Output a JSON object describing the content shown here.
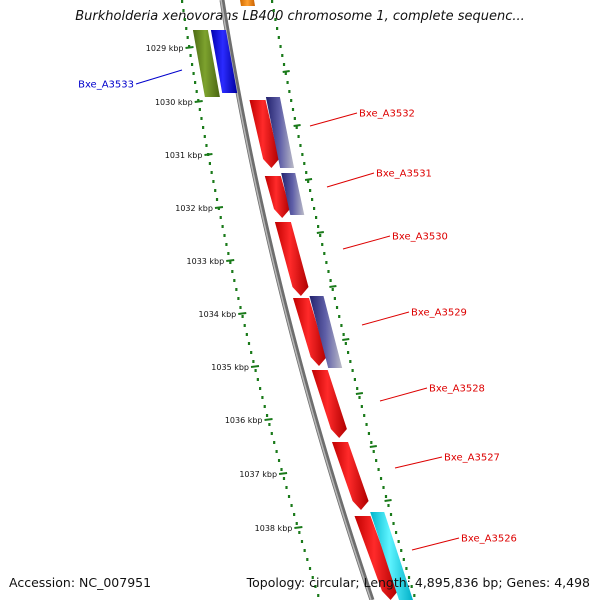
{
  "title": "Burkholderia xenovorans LB400 chromosome 1, complete sequenc...",
  "accession_text": "Accession: NC_007951",
  "summary_text": "Topology: circular; Length: 4,895,836 bp; Genes: 4,498",
  "kbp_labels": [
    "1029 kbp",
    "1030 kbp",
    "1031 kbp",
    "1032 kbp",
    "1033 kbp",
    "1034 kbp",
    "1035 kbp",
    "1036 kbp",
    "1037 kbp",
    "1038 kbp"
  ],
  "genes": [
    {
      "label": "Bxe_A3533",
      "strand": "left",
      "color": "#0000cc"
    },
    {
      "label": "Bxe_A3532",
      "strand": "right",
      "color": "#dd0000"
    },
    {
      "label": "Bxe_A3531",
      "strand": "right",
      "color": "#dd0000"
    },
    {
      "label": "Bxe_A3530",
      "strand": "right",
      "color": "#dd0000"
    },
    {
      "label": "Bxe_A3529",
      "strand": "right",
      "color": "#dd0000"
    },
    {
      "label": "Bxe_A3528",
      "strand": "right",
      "color": "#dd0000"
    },
    {
      "label": "Bxe_A3527",
      "strand": "right",
      "color": "#dd0000"
    },
    {
      "label": "Bxe_A3526",
      "strand": "right",
      "color": "#dd0000"
    }
  ],
  "colors": {
    "cds": "#ff0000",
    "gene_left": "#0000ff",
    "olive": "#6b8e23",
    "cyan": "#00e5ff",
    "orange": "#ff8c00",
    "purple": "#3a3a8c",
    "backbone": "#808080",
    "dots": "#1a7a1a"
  }
}
